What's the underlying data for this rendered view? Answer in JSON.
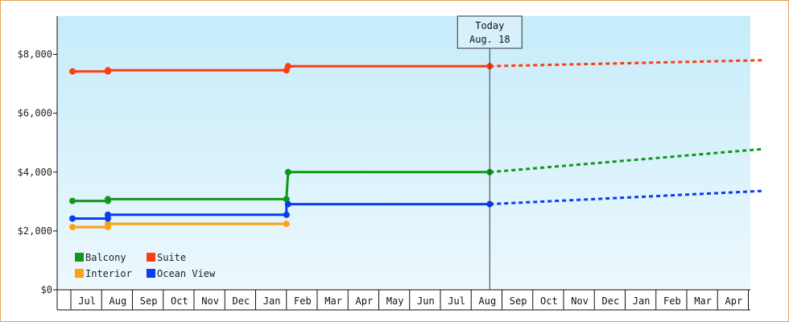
{
  "chart_data": {
    "type": "line",
    "title": "",
    "xlabel": "",
    "ylabel": "",
    "ylim": [
      0,
      9300
    ],
    "y_ticks": [
      0,
      2000,
      4000,
      6000,
      8000
    ],
    "y_tick_labels": [
      "$0",
      "$2,000",
      "$4,000",
      "$6,000",
      "$8,000"
    ],
    "x_months": [
      "Jul",
      "Aug",
      "Sep",
      "Oct",
      "Nov",
      "Dec",
      "Jan",
      "Feb",
      "Mar",
      "Apr",
      "May",
      "Jun",
      "Jul",
      "Aug",
      "Sep",
      "Oct",
      "Nov",
      "Dec",
      "Jan",
      "Feb",
      "Mar",
      "Apr"
    ],
    "x_range": [
      -0.5,
      21.9
    ],
    "grid": false,
    "legend_placement": "bottom-left",
    "today": {
      "line1": "Today",
      "line2": "Aug. 18",
      "x": 13.05
    },
    "series": [
      {
        "name": "Balcony",
        "color": "#109818",
        "points": [
          [
            -0.5,
            3020
          ],
          [
            0.65,
            3020
          ],
          [
            0.65,
            3080
          ],
          [
            6.45,
            3080
          ],
          [
            6.5,
            4000
          ],
          [
            13.05,
            4000
          ]
        ],
        "markers": [
          [
            -0.5,
            3020
          ],
          [
            0.65,
            3020
          ],
          [
            0.65,
            3080
          ],
          [
            6.45,
            3080
          ],
          [
            6.5,
            4000
          ],
          [
            13.05,
            4000
          ]
        ],
        "forecast": [
          [
            13.05,
            4000
          ],
          [
            21.9,
            4780
          ]
        ]
      },
      {
        "name": "Suite",
        "color": "#ff3c10",
        "points": [
          [
            -0.5,
            7420
          ],
          [
            0.65,
            7420
          ],
          [
            0.65,
            7460
          ],
          [
            6.45,
            7460
          ],
          [
            6.45,
            7600
          ],
          [
            13.05,
            7600
          ]
        ],
        "markers": [
          [
            -0.5,
            7420
          ],
          [
            0.65,
            7420
          ],
          [
            0.65,
            7460
          ],
          [
            6.45,
            7460
          ],
          [
            6.5,
            7600
          ],
          [
            13.05,
            7600
          ]
        ],
        "forecast": [
          [
            13.05,
            7600
          ],
          [
            21.9,
            7800
          ]
        ]
      },
      {
        "name": "Interior",
        "color": "#ffa010",
        "points": [
          [
            -0.5,
            2130
          ],
          [
            0.65,
            2130
          ],
          [
            0.65,
            2240
          ],
          [
            6.45,
            2240
          ]
        ],
        "markers": [
          [
            -0.5,
            2130
          ],
          [
            0.65,
            2130
          ],
          [
            0.65,
            2240
          ],
          [
            6.45,
            2240
          ]
        ],
        "forecast": []
      },
      {
        "name": "Ocean View",
        "color": "#0a3cf0",
        "points": [
          [
            -0.5,
            2420
          ],
          [
            0.65,
            2420
          ],
          [
            0.65,
            2550
          ],
          [
            6.45,
            2550
          ],
          [
            6.45,
            2910
          ],
          [
            13.05,
            2910
          ]
        ],
        "markers": [
          [
            -0.5,
            2420
          ],
          [
            0.65,
            2420
          ],
          [
            0.65,
            2550
          ],
          [
            6.45,
            2550
          ],
          [
            6.5,
            2910
          ],
          [
            13.05,
            2910
          ]
        ],
        "forecast": [
          [
            13.05,
            2910
          ],
          [
            21.9,
            3360
          ]
        ]
      }
    ],
    "legend_order": [
      "Balcony",
      "Suite",
      "Interior",
      "Ocean View"
    ]
  }
}
